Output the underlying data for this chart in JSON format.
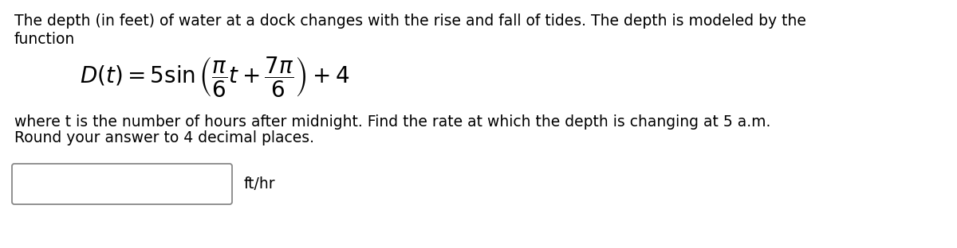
{
  "background_color": "#ffffff",
  "text_color": "#000000",
  "font_family": "DejaVu Sans",
  "line1": "The depth (in feet) of water at a dock changes with the rise and fall of tides. The depth is modeled by the",
  "line2": "function",
  "formula": "$D(t) = 5 \\sin\\left(\\dfrac{\\pi}{6}t + \\dfrac{7\\pi}{6}\\right) + 4$",
  "line3": "where t is the number of hours after midnight. Find the rate at which the depth is changing at 5 a.m.",
  "line4": "Round your answer to 4 decimal places.",
  "unit_label": "ft/hr",
  "text_fontsize": 13.5,
  "formula_fontsize": 20
}
